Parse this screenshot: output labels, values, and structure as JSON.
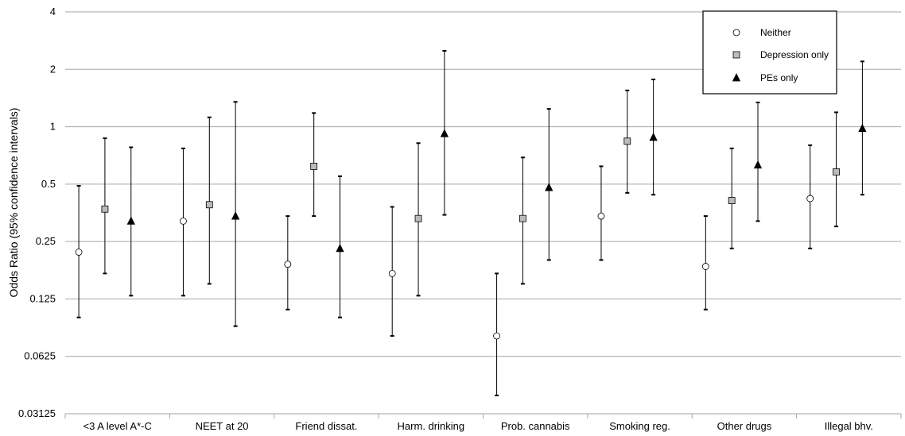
{
  "chart_data": {
    "type": "scatter",
    "title": "",
    "xlabel": "",
    "ylabel": "Odds Ratio (95% confidence intervals)",
    "y_scale": "log2",
    "ylim": [
      0.03125,
      4
    ],
    "y_ticks": [
      "0.03125",
      "0.0625",
      "0.125",
      "0.25",
      "0.5",
      "1",
      "2",
      "4"
    ],
    "categories": [
      "<3 A level A*-C",
      "NEET at 20",
      "Friend dissat.",
      "Harm. drinking",
      "Prob. cannabis",
      "Smoking reg.",
      "Other drugs",
      "Illegal bhv."
    ],
    "grid": true,
    "legend_position": "top-right",
    "series": [
      {
        "name": "Neither",
        "marker": "circle",
        "fill": "#ffffff",
        "values": [
          0.22,
          0.32,
          0.19,
          0.17,
          0.08,
          0.34,
          0.185,
          0.42
        ],
        "lower": [
          0.1,
          0.13,
          0.11,
          0.08,
          0.039,
          0.2,
          0.11,
          0.23
        ],
        "upper": [
          0.49,
          0.77,
          0.34,
          0.38,
          0.17,
          0.62,
          0.34,
          0.8
        ]
      },
      {
        "name": "Depression only",
        "marker": "square",
        "fill": "#bbbbbb",
        "values": [
          0.37,
          0.39,
          0.62,
          0.33,
          0.33,
          0.84,
          0.41,
          0.58
        ],
        "lower": [
          0.17,
          0.15,
          0.34,
          0.13,
          0.15,
          0.45,
          0.23,
          0.3
        ],
        "upper": [
          0.87,
          1.12,
          1.18,
          0.82,
          0.69,
          1.55,
          0.77,
          1.19
        ]
      },
      {
        "name": "PEs only",
        "marker": "triangle",
        "fill": "#000000",
        "values": [
          0.32,
          0.34,
          0.23,
          0.92,
          0.48,
          0.88,
          0.63,
          0.98
        ],
        "lower": [
          0.13,
          0.09,
          0.1,
          0.345,
          0.2,
          0.44,
          0.32,
          0.44
        ],
        "upper": [
          0.78,
          1.35,
          0.55,
          2.5,
          1.24,
          1.77,
          1.34,
          2.2
        ]
      }
    ]
  }
}
